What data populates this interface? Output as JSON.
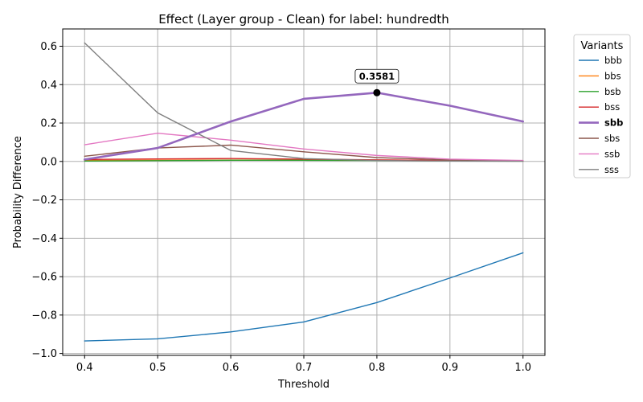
{
  "chart_data": {
    "type": "line",
    "title": "Effect (Layer group - Clean) for label: hundredth",
    "xlabel": "Threshold",
    "ylabel": "Probability Difference",
    "xlim": [
      0.37,
      1.03
    ],
    "ylim": [
      -1.01,
      0.69
    ],
    "xticks": [
      0.4,
      0.5,
      0.6,
      0.7,
      0.8,
      0.9,
      1.0
    ],
    "xtick_labels": [
      "0.4",
      "0.5",
      "0.6",
      "0.7",
      "0.8",
      "0.9",
      "1.0"
    ],
    "yticks": [
      0.6,
      0.4,
      0.2,
      0.0,
      -0.2,
      -0.4,
      -0.6,
      -0.8,
      -1.0
    ],
    "ytick_labels": [
      "0.6",
      "0.4",
      "0.2",
      "0.0",
      "−0.2",
      "−0.4",
      "−0.6",
      "−0.8",
      "−1.0"
    ],
    "grid": true,
    "legend": {
      "title": "Variants",
      "placement": "outside-right"
    },
    "x": [
      0.4,
      0.5,
      0.6,
      0.7,
      0.8,
      0.9,
      1.0
    ],
    "series": [
      {
        "name": "bbb",
        "color": "#1f77b4",
        "values": [
          -0.935,
          -0.924,
          -0.888,
          -0.836,
          -0.735,
          -0.607,
          -0.476
        ]
      },
      {
        "name": "bbs",
        "color": "#ff7f0e",
        "values": [
          0.005,
          0.006,
          0.007,
          0.007,
          0.006,
          0.004,
          0.002
        ]
      },
      {
        "name": "bsb",
        "color": "#2ca02c",
        "values": [
          0.002,
          0.004,
          0.006,
          0.006,
          0.005,
          0.003,
          0.002
        ]
      },
      {
        "name": "bss",
        "color": "#d62728",
        "values": [
          0.01,
          0.013,
          0.015,
          0.012,
          0.008,
          0.005,
          0.003
        ]
      },
      {
        "name": "sbb",
        "color": "#9467bd",
        "highlight": true,
        "values": [
          0.01,
          0.07,
          0.208,
          0.326,
          0.3581,
          0.29,
          0.208
        ]
      },
      {
        "name": "sbs",
        "color": "#8c564b",
        "values": [
          0.027,
          0.07,
          0.085,
          0.05,
          0.02,
          0.008,
          0.003
        ]
      },
      {
        "name": "ssb",
        "color": "#e377c2",
        "values": [
          0.087,
          0.147,
          0.111,
          0.065,
          0.031,
          0.012,
          0.005
        ]
      },
      {
        "name": "sss",
        "color": "#7f7f7f",
        "values": [
          0.617,
          0.253,
          0.057,
          0.015,
          0.005,
          0.002,
          0.001
        ]
      }
    ],
    "annotation": {
      "x": 0.8,
      "y": 0.3581,
      "text": "0.3581",
      "series": "sbb"
    }
  }
}
